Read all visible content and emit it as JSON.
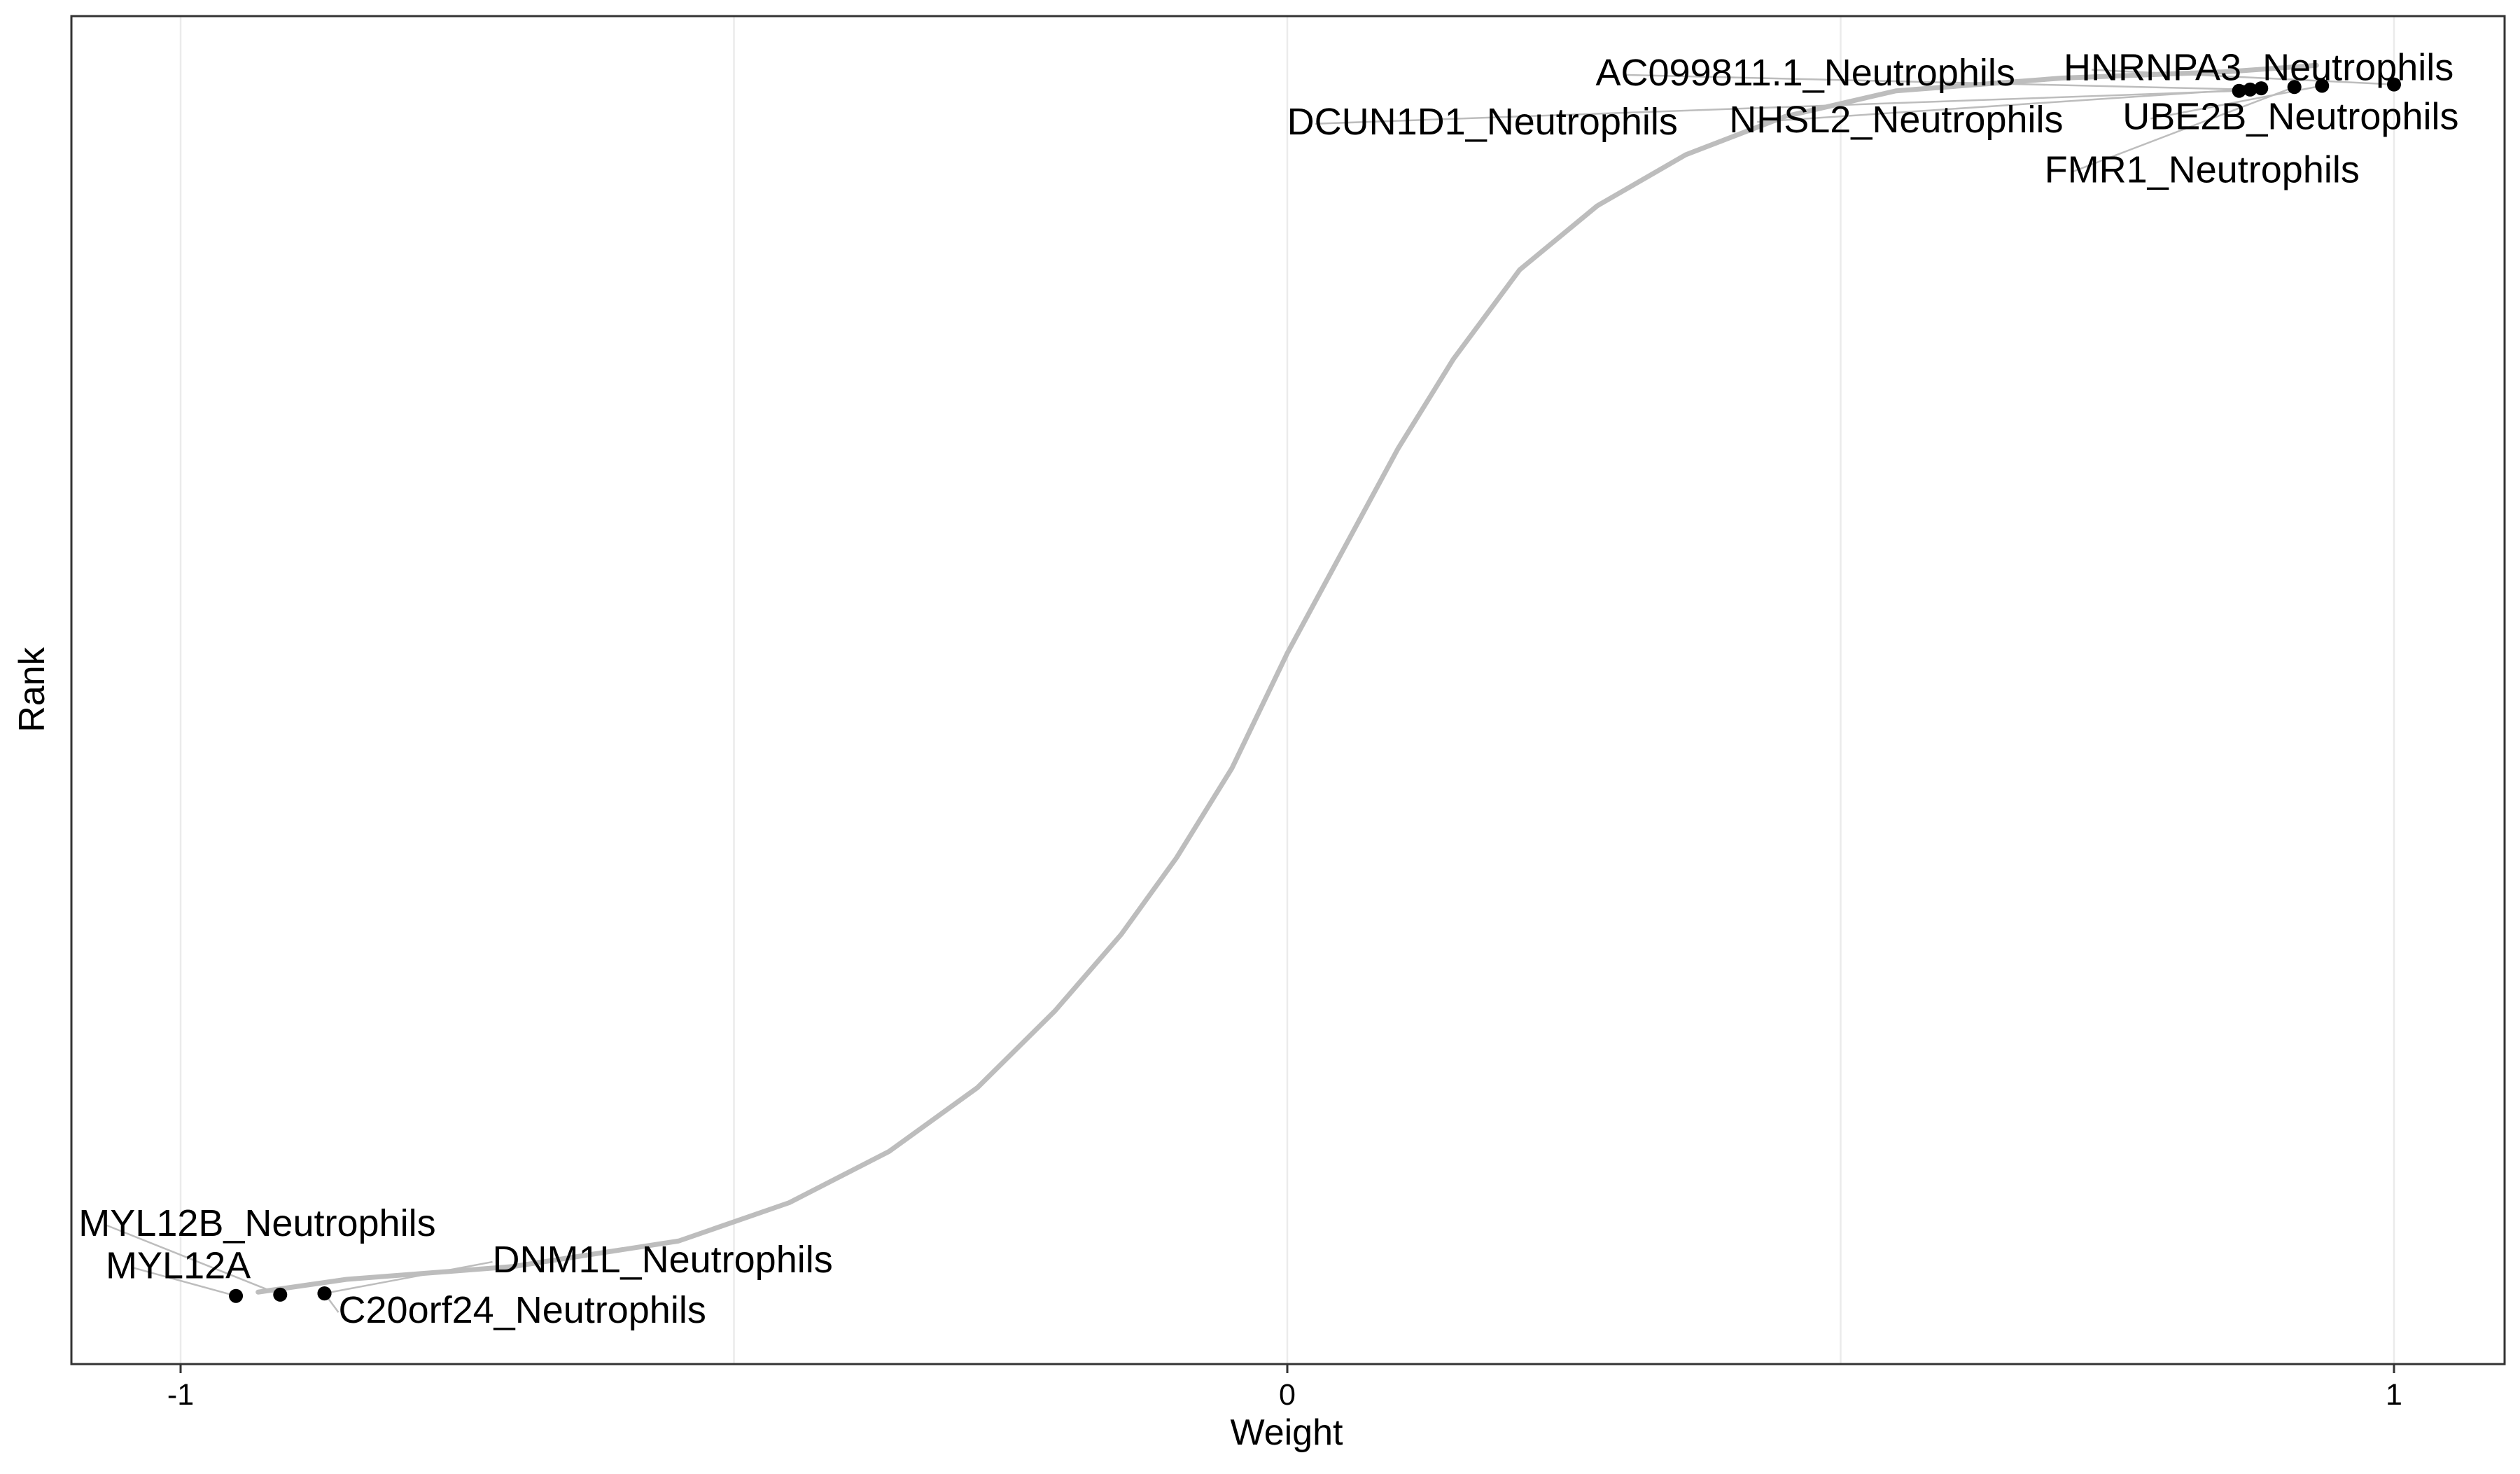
{
  "chart_data": {
    "type": "scatter",
    "title": "",
    "xlabel": "Weight",
    "ylabel": "Rank",
    "xlim": [
      -1.1,
      1.1
    ],
    "ylim": [
      0,
      1
    ],
    "x_ticks": [
      -1,
      0,
      1
    ],
    "x_tick_labels": [
      "-1",
      "0",
      "1"
    ],
    "y_ticks_shown": false,
    "grid": "vertical-major-and-minor",
    "legend": "none",
    "background_curve": {
      "description_color": "#bdbdbd",
      "points": [
        {
          "x": -0.93,
          "y": 0.03
        },
        {
          "x": -0.85,
          "y": 0.04
        },
        {
          "x": -0.7,
          "y": 0.05
        },
        {
          "x": -0.55,
          "y": 0.07
        },
        {
          "x": -0.45,
          "y": 0.1
        },
        {
          "x": -0.36,
          "y": 0.14
        },
        {
          "x": -0.28,
          "y": 0.19
        },
        {
          "x": -0.21,
          "y": 0.25
        },
        {
          "x": -0.15,
          "y": 0.31
        },
        {
          "x": -0.1,
          "y": 0.37
        },
        {
          "x": -0.05,
          "y": 0.44
        },
        {
          "x": 0.0,
          "y": 0.53
        },
        {
          "x": 0.05,
          "y": 0.61
        },
        {
          "x": 0.1,
          "y": 0.69
        },
        {
          "x": 0.15,
          "y": 0.76
        },
        {
          "x": 0.21,
          "y": 0.83
        },
        {
          "x": 0.28,
          "y": 0.88
        },
        {
          "x": 0.36,
          "y": 0.92
        },
        {
          "x": 0.45,
          "y": 0.95
        },
        {
          "x": 0.55,
          "y": 0.97
        },
        {
          "x": 0.7,
          "y": 0.98
        },
        {
          "x": 0.85,
          "y": 0.985
        },
        {
          "x": 0.93,
          "y": 0.99
        }
      ]
    },
    "highlighted_points": [
      {
        "label": "MYL12A",
        "x": -0.95,
        "y": 0.027
      },
      {
        "label": "MYL12B_Neutrophils",
        "x": -0.91,
        "y": 0.028
      },
      {
        "label": "C20orf24_Neutrophils",
        "x": -0.87,
        "y": 0.029
      },
      {
        "label": "DNM1L_Neutrophils",
        "x": -0.87,
        "y": 0.029
      },
      {
        "label": "DCUN1D1_Neutrophils",
        "x": 0.86,
        "y": 0.97
      },
      {
        "label": "AC099811.1_Neutrophils",
        "x": 0.87,
        "y": 0.971
      },
      {
        "label": "NHSL2_Neutrophils",
        "x": 0.88,
        "y": 0.972
      },
      {
        "label": "FMR1_Neutrophils",
        "x": 0.91,
        "y": 0.973
      },
      {
        "label": "UBE2B_Neutrophils",
        "x": 0.935,
        "y": 0.974
      },
      {
        "label": "HNRNPA3_Neutrophils",
        "x": 1.0,
        "y": 0.975
      }
    ]
  }
}
